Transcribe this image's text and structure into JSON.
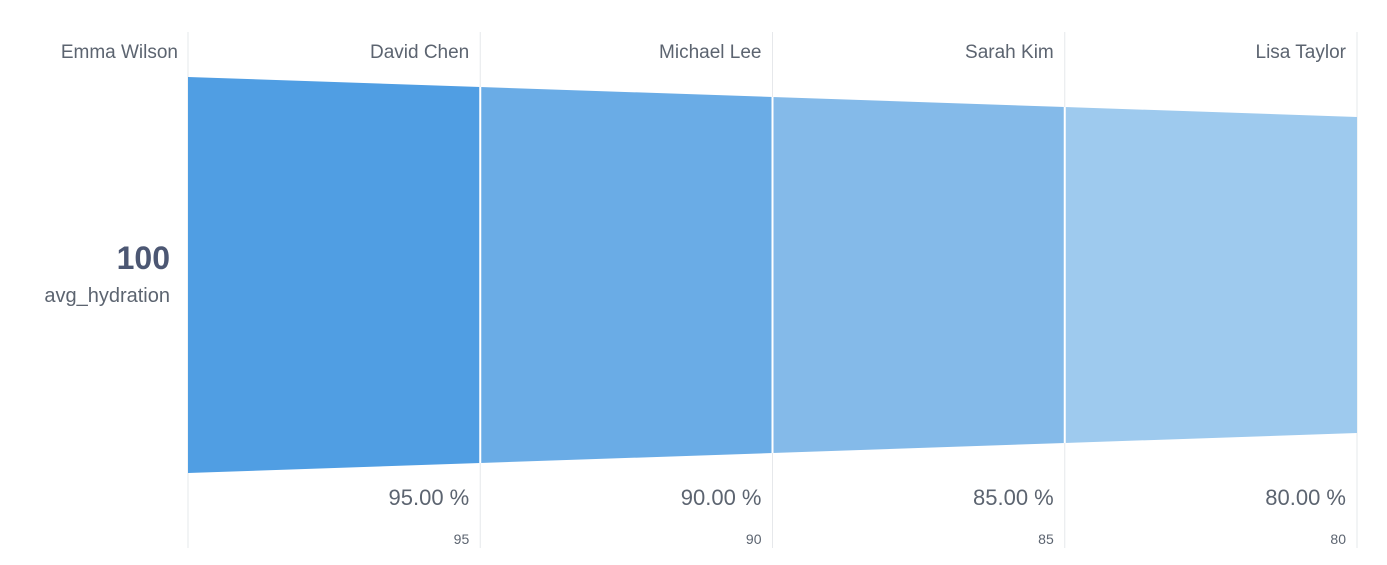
{
  "chart_data": {
    "type": "funnel",
    "metric": "avg_hydration",
    "first_step": {
      "name": "Emma Wilson",
      "value": 100
    },
    "steps": [
      {
        "name": "David Chen",
        "value": 95,
        "percent": "95.00 %",
        "color": "#509ee3"
      },
      {
        "name": "Michael Lee",
        "value": 90,
        "percent": "90.00 %",
        "color": "#6aace6"
      },
      {
        "name": "Sarah Kim",
        "value": 85,
        "percent": "85.00 %",
        "color": "#84bae9"
      },
      {
        "name": "Lisa Taylor",
        "value": 80,
        "percent": "80.00 %",
        "color": "#9ecaee"
      }
    ],
    "grid_color": "#e6e8eb"
  }
}
